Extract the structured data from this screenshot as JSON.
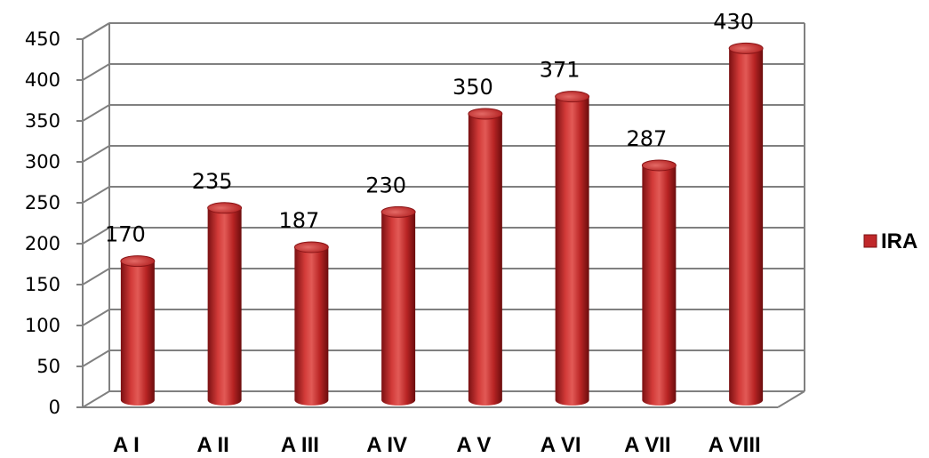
{
  "chart_data": {
    "type": "bar",
    "style": "3d-cylinder",
    "categories": [
      "A I",
      "A II",
      "A III",
      "A IV",
      "A V",
      "A VI",
      "A VII",
      "A VIII"
    ],
    "series": [
      {
        "name": "IRA",
        "values": [
          170,
          235,
          187,
          230,
          350,
          371,
          287,
          430
        ]
      }
    ],
    "data_labels": [
      "170",
      "235",
      "187",
      "230",
      "350",
      "371",
      "287",
      "430"
    ],
    "ylim": [
      0,
      450
    ],
    "yticks": [
      0,
      50,
      100,
      150,
      200,
      250,
      300,
      350,
      400,
      450
    ],
    "grid": true,
    "legend_position": "right",
    "colors": {
      "bar": "#c0282a",
      "bar_dark": "#6e0d0e",
      "bar_light": "#f08a88",
      "grid": "#808080"
    }
  }
}
